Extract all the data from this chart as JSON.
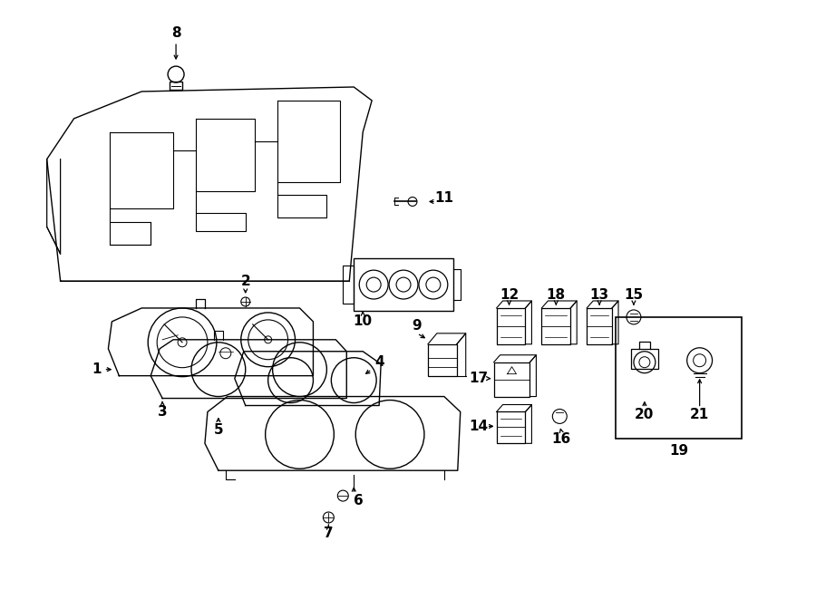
{
  "bg_color": "#ffffff",
  "line_color": "#000000",
  "text_color": "#000000",
  "fig_width": 9.0,
  "fig_height": 6.61,
  "dpi": 100
}
